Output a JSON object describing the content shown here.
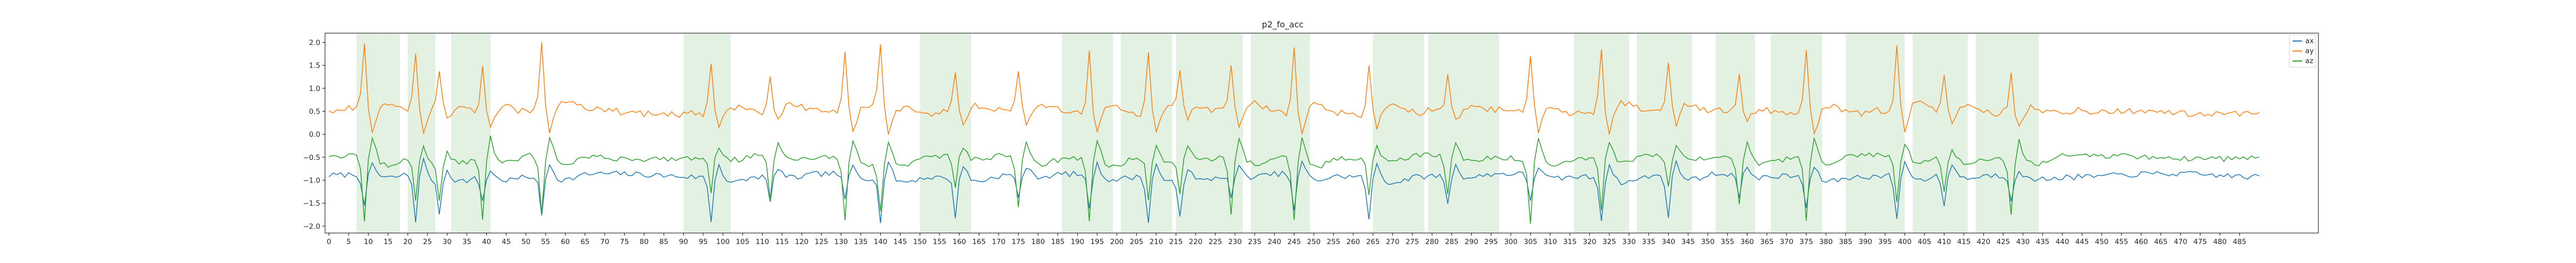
{
  "chart_data": {
    "type": "line",
    "title": "p2_fo_acc",
    "xlabel": "",
    "ylabel": "",
    "xlim": [
      -1,
      505
    ],
    "ylim": [
      -2.15,
      2.2
    ],
    "x_ticks": [
      0,
      5,
      10,
      15,
      20,
      25,
      30,
      35,
      40,
      45,
      50,
      55,
      60,
      65,
      70,
      75,
      80,
      85,
      90,
      95,
      100,
      105,
      110,
      115,
      120,
      125,
      130,
      135,
      140,
      145,
      150,
      155,
      160,
      165,
      170,
      175,
      180,
      185,
      190,
      195,
      200,
      205,
      210,
      215,
      220,
      225,
      230,
      235,
      240,
      245,
      250,
      255,
      260,
      265,
      270,
      275,
      280,
      285,
      290,
      295,
      300,
      305,
      310,
      315,
      320,
      325,
      330,
      335,
      340,
      345,
      350,
      355,
      360,
      365,
      370,
      375,
      380,
      385,
      390,
      395,
      400,
      405,
      410,
      415,
      420,
      425,
      430,
      435,
      440,
      445,
      450,
      455,
      460,
      465,
      470,
      475,
      480,
      485
    ],
    "y_ticks": [
      -2.0,
      -1.5,
      -1.0,
      -0.5,
      0.0,
      0.5,
      1.0,
      1.5,
      2.0
    ],
    "y_tick_labels": [
      "−2.0",
      "−1.5",
      "−1.0",
      "−0.5",
      "0.0",
      "0.5",
      "1.0",
      "1.5",
      "2.0"
    ],
    "grid": false,
    "legend_position": "top-right",
    "shaded_regions": [
      [
        7,
        13
      ],
      [
        13,
        18
      ],
      [
        20,
        27
      ],
      [
        31,
        41
      ],
      [
        90,
        102
      ],
      [
        150,
        163
      ],
      [
        186,
        199
      ],
      [
        201,
        214
      ],
      [
        215,
        232
      ],
      [
        234,
        249
      ],
      [
        265,
        278
      ],
      [
        279,
        297
      ],
      [
        316,
        330
      ],
      [
        332,
        346
      ],
      [
        352,
        362
      ],
      [
        366,
        379
      ],
      [
        385,
        400
      ],
      [
        402,
        416
      ],
      [
        418,
        434
      ]
    ],
    "shade_color": "#d9ecd9",
    "beats": [
      9,
      22,
      28,
      39,
      54,
      97,
      112,
      131,
      140,
      159,
      175,
      193,
      208,
      216,
      229,
      245,
      264,
      284,
      305,
      323,
      340,
      358,
      375,
      398,
      410,
      427
    ],
    "series": [
      {
        "name": "ax",
        "color": "#1f77b4",
        "base": -0.9,
        "amplitude": -1.0
      },
      {
        "name": "ay",
        "color": "#ff7f0e",
        "base": 0.48,
        "amplitude": 1.5
      },
      {
        "name": "az",
        "color": "#2ca02c",
        "base": -0.5,
        "amplitude": -1.4
      }
    ]
  }
}
